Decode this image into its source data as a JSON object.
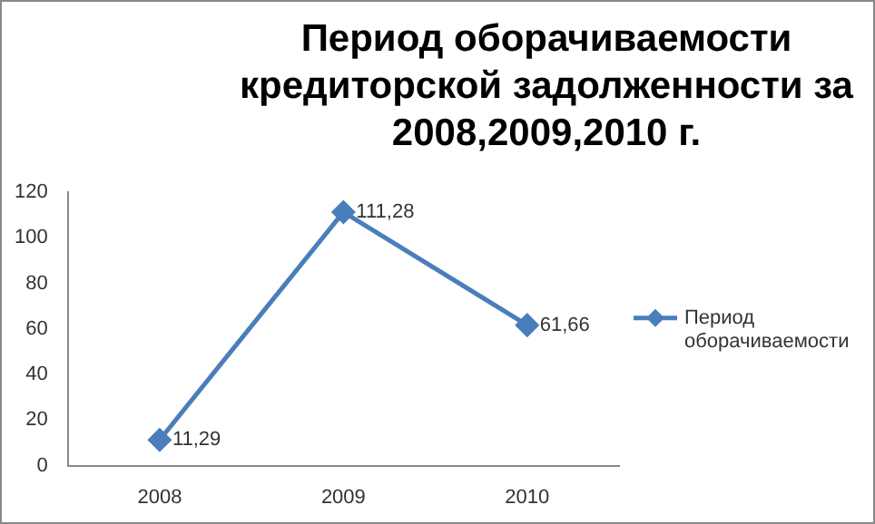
{
  "chart_data": {
    "type": "line",
    "title": "Период оборачиваемости кредиторской задолженности за 2008,2009,2010 г.",
    "categories": [
      "2008",
      "2009",
      "2010"
    ],
    "series": [
      {
        "name": "Период оборачиваемости",
        "color": "#4a7ebb",
        "values": [
          11.29,
          111.28,
          61.66
        ]
      }
    ],
    "ylim": [
      0,
      120
    ],
    "yticks": [
      0,
      20,
      40,
      60,
      80,
      100,
      120
    ],
    "value_labels": [
      "11,29",
      "111,28",
      "61,66"
    ],
    "marker": "diamond",
    "legend": "right",
    "grid": false
  }
}
